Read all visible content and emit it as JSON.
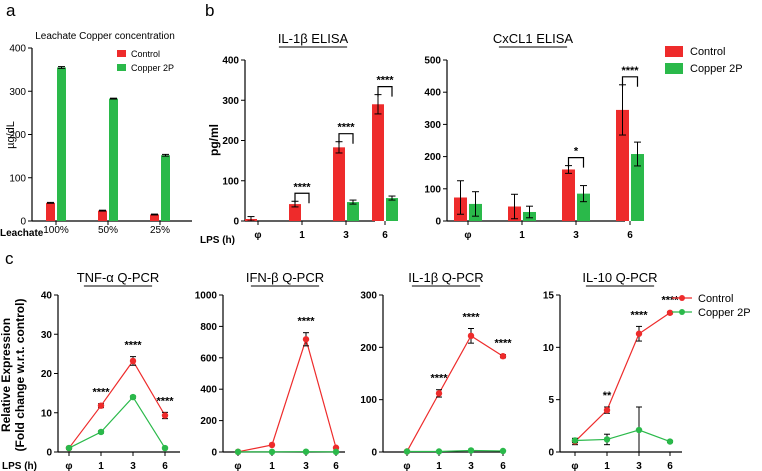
{
  "colors": {
    "control": "#ee2b2b",
    "copper": "#2ab94a"
  },
  "panels": {
    "a": "a",
    "b": "b",
    "c": "c"
  },
  "chart_data": [
    {
      "id": "a",
      "type": "bar",
      "title": "Leachate Copper concentration",
      "xlabel": "Leachate",
      "ylabel": "µg/dL",
      "categories": [
        "100%",
        "50%",
        "25%"
      ],
      "ylim": [
        0,
        400
      ],
      "yticks": [
        0,
        100,
        200,
        300,
        400
      ],
      "series": [
        {
          "name": "Control",
          "values": [
            42,
            24,
            15
          ],
          "err": [
            1,
            1,
            1
          ]
        },
        {
          "name": "Copper 2P",
          "values": [
            355,
            283,
            152
          ],
          "err": [
            2,
            1,
            2
          ]
        }
      ],
      "legend": [
        "Control",
        "Copper 2P"
      ]
    },
    {
      "id": "b1",
      "type": "bar",
      "title": "IL-1β ELISA",
      "xlabel": "LPS (h)",
      "ylabel": "pg/ml",
      "categories": [
        "φ",
        "1",
        "3",
        "6"
      ],
      "ylim": [
        0,
        400
      ],
      "yticks": [
        0,
        100,
        200,
        300,
        400
      ],
      "series": [
        {
          "name": "Control",
          "values": [
            5,
            42,
            183,
            290
          ],
          "err": [
            6,
            7,
            14,
            24
          ]
        },
        {
          "name": "Copper 2P",
          "values": [
            0,
            0,
            47,
            57
          ],
          "err": [
            0,
            0,
            5,
            5
          ]
        }
      ],
      "annotations": [
        {
          "category": 1,
          "text": "****"
        },
        {
          "category": 2,
          "text": "****"
        },
        {
          "category": 3,
          "text": "****"
        }
      ]
    },
    {
      "id": "b2",
      "type": "bar",
      "title": "CxCL1 ELISA",
      "xlabel": "",
      "ylabel": "",
      "categories": [
        "φ",
        "1",
        "3",
        "6"
      ],
      "ylim": [
        0,
        500
      ],
      "yticks": [
        0,
        100,
        200,
        300,
        400,
        500
      ],
      "series": [
        {
          "name": "Control",
          "values": [
            73,
            45,
            160,
            345
          ],
          "err": [
            52,
            38,
            12,
            78
          ]
        },
        {
          "name": "Copper 2P",
          "values": [
            53,
            28,
            85,
            208
          ],
          "err": [
            38,
            18,
            25,
            37
          ]
        }
      ],
      "annotations": [
        {
          "category": 2,
          "text": "*"
        },
        {
          "category": 3,
          "text": "****"
        }
      ],
      "legend": [
        "Control",
        "Copper 2P"
      ]
    },
    {
      "id": "c1",
      "type": "line",
      "title": "TNF-α Q-PCR",
      "xlabel": "LPS (h)",
      "ylabel": "Relative Expression",
      "ylabel2": "(Fold change w.r.t. control)",
      "categories": [
        "φ",
        "1",
        "3",
        "6"
      ],
      "ylim": [
        0,
        40
      ],
      "yticks": [
        0,
        10,
        20,
        30,
        40
      ],
      "series": [
        {
          "name": "Control",
          "values": [
            1,
            11.8,
            23.2,
            9.3
          ],
          "err": [
            0.3,
            0.5,
            1.1,
            0.8
          ]
        },
        {
          "name": "Copper 2P",
          "values": [
            1,
            5.1,
            14,
            1
          ],
          "err": [
            0.2,
            0.3,
            0.3,
            0.2
          ]
        }
      ],
      "annotations": [
        {
          "category": 1,
          "text": "****"
        },
        {
          "category": 2,
          "text": "****"
        },
        {
          "category": 3,
          "text": "****"
        }
      ]
    },
    {
      "id": "c2",
      "type": "line",
      "title": "IFN-β Q-PCR",
      "xlabel": "",
      "ylabel": "",
      "categories": [
        "φ",
        "1",
        "3",
        "6"
      ],
      "ylim": [
        0,
        1000
      ],
      "yticks": [
        0,
        200,
        400,
        600,
        800,
        1000
      ],
      "series": [
        {
          "name": "Control",
          "values": [
            1,
            45,
            718,
            27
          ],
          "err": [
            1,
            3,
            42,
            3
          ]
        },
        {
          "name": "Copper 2P",
          "values": [
            1,
            1,
            2,
            1
          ],
          "err": [
            0,
            0,
            1,
            0
          ]
        }
      ],
      "annotations": [
        {
          "category": 2,
          "text": "****"
        }
      ]
    },
    {
      "id": "c3",
      "type": "line",
      "title": "IL-1β Q-PCR",
      "xlabel": "",
      "ylabel": "",
      "categories": [
        "φ",
        "1",
        "3",
        "6"
      ],
      "ylim": [
        0,
        300
      ],
      "yticks": [
        0,
        100,
        200,
        300
      ],
      "series": [
        {
          "name": "Control",
          "values": [
            1,
            112,
            222,
            183
          ],
          "err": [
            1,
            7,
            14,
            3
          ]
        },
        {
          "name": "Copper 2P",
          "values": [
            1,
            1,
            3,
            2
          ],
          "err": [
            0,
            0,
            1,
            0
          ]
        }
      ],
      "annotations": [
        {
          "category": 1,
          "text": "****"
        },
        {
          "category": 2,
          "text": "****"
        },
        {
          "category": 3,
          "text": "****"
        }
      ]
    },
    {
      "id": "c4",
      "type": "line",
      "title": "IL-10 Q-PCR",
      "xlabel": "",
      "ylabel": "",
      "categories": [
        "φ",
        "1",
        "3",
        "6"
      ],
      "ylim": [
        0,
        15
      ],
      "yticks": [
        0,
        5,
        10,
        15
      ],
      "series": [
        {
          "name": "Control",
          "values": [
            1,
            4,
            11.3,
            13.3
          ],
          "err": [
            0.3,
            0.3,
            0.7,
            0.1
          ]
        },
        {
          "name": "Copper 2P",
          "values": [
            1.1,
            1.2,
            2.1,
            1
          ],
          "err": [
            0.2,
            0.5,
            2.2,
            0.1
          ]
        }
      ],
      "annotations": [
        {
          "category": 1,
          "text": "**"
        },
        {
          "category": 2,
          "text": "****"
        },
        {
          "category": 3,
          "text": "****"
        }
      ],
      "legend": [
        "Control",
        "Copper 2P"
      ]
    }
  ]
}
